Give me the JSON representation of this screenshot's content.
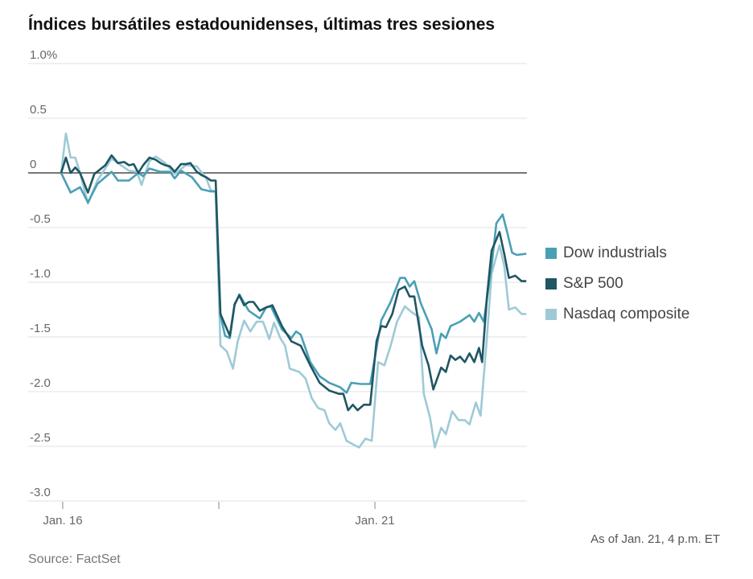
{
  "title": "Índices bursátiles estadounidenses, últimas tres sesiones",
  "as_of": "As of Jan. 21, 4 p.m. ET",
  "source": "Source: FactSet",
  "chart_data": {
    "type": "line",
    "title": "Índices bursátiles estadounidenses, últimas tres sesiones",
    "xlabel": "",
    "ylabel": "",
    "x_units": "trading sessions from Jan. 16 open",
    "xlim": [
      0,
      2.95
    ],
    "ylim": [
      -3.0,
      1.0
    ],
    "yticks": [
      1.0,
      0.5,
      0,
      -0.5,
      -1.0,
      -1.5,
      -2.0,
      -2.5,
      -3.0
    ],
    "ytick_labels": [
      "1.0%",
      "0.5",
      "0",
      "-0.5",
      "-1.0",
      "-1.5",
      "-2.0",
      "-2.5",
      "-3.0"
    ],
    "xticks": [
      0.01,
      1.0,
      1.99
    ],
    "xtick_labels": [
      "Jan. 16",
      "",
      "Jan. 21"
    ],
    "grid": true,
    "legend_position": "right",
    "series": [
      {
        "name": "Dow industrials",
        "color": "#4a9fb5",
        "points": [
          [
            0,
            0
          ],
          [
            0.06,
            -0.18
          ],
          [
            0.12,
            -0.13
          ],
          [
            0.17,
            -0.27
          ],
          [
            0.23,
            -0.1
          ],
          [
            0.32,
            0.01
          ],
          [
            0.36,
            -0.07
          ],
          [
            0.43,
            -0.07
          ],
          [
            0.49,
            0
          ],
          [
            0.52,
            -0.03
          ],
          [
            0.56,
            0.04
          ],
          [
            0.63,
            0.01
          ],
          [
            0.69,
            0.01
          ],
          [
            0.72,
            -0.05
          ],
          [
            0.76,
            0.02
          ],
          [
            0.83,
            -0.04
          ],
          [
            0.89,
            -0.15
          ],
          [
            0.95,
            -0.17
          ],
          [
            0.98,
            -0.17
          ],
          [
            1.01,
            -1.3
          ],
          [
            1.04,
            -1.49
          ],
          [
            1.07,
            -1.51
          ],
          [
            1.1,
            -1.21
          ],
          [
            1.13,
            -1.11
          ],
          [
            1.19,
            -1.26
          ],
          [
            1.26,
            -1.33
          ],
          [
            1.3,
            -1.23
          ],
          [
            1.33,
            -1.22
          ],
          [
            1.4,
            -1.43
          ],
          [
            1.46,
            -1.51
          ],
          [
            1.49,
            -1.45
          ],
          [
            1.52,
            -1.48
          ],
          [
            1.58,
            -1.73
          ],
          [
            1.64,
            -1.86
          ],
          [
            1.7,
            -1.92
          ],
          [
            1.77,
            -1.96
          ],
          [
            1.81,
            -2.01
          ],
          [
            1.84,
            -1.92
          ],
          [
            1.9,
            -1.93
          ],
          [
            1.96,
            -1.93
          ],
          [
            1.99,
            -1.69
          ],
          [
            2.03,
            -1.35
          ],
          [
            2.09,
            -1.18
          ],
          [
            2.15,
            -0.96
          ],
          [
            2.18,
            -0.96
          ],
          [
            2.21,
            -1.04
          ],
          [
            2.24,
            -0.99
          ],
          [
            2.28,
            -1.19
          ],
          [
            2.35,
            -1.43
          ],
          [
            2.38,
            -1.65
          ],
          [
            2.41,
            -1.47
          ],
          [
            2.44,
            -1.51
          ],
          [
            2.47,
            -1.4
          ],
          [
            2.53,
            -1.36
          ],
          [
            2.59,
            -1.3
          ],
          [
            2.62,
            -1.36
          ],
          [
            2.65,
            -1.28
          ],
          [
            2.68,
            -1.36
          ],
          [
            2.73,
            -0.85
          ],
          [
            2.76,
            -0.46
          ],
          [
            2.8,
            -0.38
          ],
          [
            2.83,
            -0.55
          ],
          [
            2.86,
            -0.73
          ],
          [
            2.89,
            -0.75
          ],
          [
            2.95,
            -0.74
          ]
        ]
      },
      {
        "name": "S&P 500",
        "color": "#1f5663",
        "points": [
          [
            0,
            0
          ],
          [
            0.03,
            0.14
          ],
          [
            0.06,
            0
          ],
          [
            0.09,
            0.05
          ],
          [
            0.12,
            0
          ],
          [
            0.17,
            -0.18
          ],
          [
            0.21,
            -0.01
          ],
          [
            0.28,
            0.07
          ],
          [
            0.32,
            0.16
          ],
          [
            0.36,
            0.09
          ],
          [
            0.4,
            0.1
          ],
          [
            0.43,
            0.07
          ],
          [
            0.46,
            0.08
          ],
          [
            0.49,
            0
          ],
          [
            0.52,
            0.07
          ],
          [
            0.56,
            0.14
          ],
          [
            0.6,
            0.12
          ],
          [
            0.63,
            0.09
          ],
          [
            0.66,
            0.07
          ],
          [
            0.69,
            0.06
          ],
          [
            0.72,
            0.01
          ],
          [
            0.76,
            0.08
          ],
          [
            0.79,
            0.08
          ],
          [
            0.82,
            0.09
          ],
          [
            0.86,
            0.01
          ],
          [
            0.89,
            -0.02
          ],
          [
            0.92,
            -0.04
          ],
          [
            0.95,
            -0.07
          ],
          [
            0.98,
            -0.07
          ],
          [
            1.01,
            -1.29
          ],
          [
            1.07,
            -1.49
          ],
          [
            1.1,
            -1.2
          ],
          [
            1.13,
            -1.12
          ],
          [
            1.16,
            -1.21
          ],
          [
            1.19,
            -1.18
          ],
          [
            1.22,
            -1.18
          ],
          [
            1.26,
            -1.26
          ],
          [
            1.3,
            -1.23
          ],
          [
            1.34,
            -1.21
          ],
          [
            1.4,
            -1.4
          ],
          [
            1.46,
            -1.54
          ],
          [
            1.52,
            -1.58
          ],
          [
            1.58,
            -1.76
          ],
          [
            1.64,
            -1.92
          ],
          [
            1.7,
            -1.99
          ],
          [
            1.76,
            -2.02
          ],
          [
            1.79,
            -2.02
          ],
          [
            1.82,
            -2.17
          ],
          [
            1.85,
            -2.12
          ],
          [
            1.88,
            -2.17
          ],
          [
            1.92,
            -2.12
          ],
          [
            1.96,
            -2.12
          ],
          [
            2.0,
            -1.54
          ],
          [
            2.03,
            -1.4
          ],
          [
            2.06,
            -1.41
          ],
          [
            2.1,
            -1.29
          ],
          [
            2.14,
            -1.07
          ],
          [
            2.18,
            -1.04
          ],
          [
            2.21,
            -1.13
          ],
          [
            2.24,
            -1.13
          ],
          [
            2.29,
            -1.58
          ],
          [
            2.33,
            -1.76
          ],
          [
            2.36,
            -1.98
          ],
          [
            2.41,
            -1.78
          ],
          [
            2.44,
            -1.82
          ],
          [
            2.47,
            -1.67
          ],
          [
            2.5,
            -1.71
          ],
          [
            2.53,
            -1.68
          ],
          [
            2.56,
            -1.73
          ],
          [
            2.59,
            -1.65
          ],
          [
            2.62,
            -1.73
          ],
          [
            2.65,
            -1.6
          ],
          [
            2.67,
            -1.73
          ],
          [
            2.7,
            -1.14
          ],
          [
            2.73,
            -0.71
          ],
          [
            2.78,
            -0.54
          ],
          [
            2.81,
            -0.74
          ],
          [
            2.84,
            -0.96
          ],
          [
            2.88,
            -0.94
          ],
          [
            2.92,
            -0.99
          ],
          [
            2.95,
            -0.99
          ]
        ]
      },
      {
        "name": "Nasdaq composite",
        "color": "#9ecad6",
        "points": [
          [
            0,
            0
          ],
          [
            0.03,
            0.36
          ],
          [
            0.06,
            0.14
          ],
          [
            0.09,
            0.14
          ],
          [
            0.12,
            0
          ],
          [
            0.17,
            -0.28
          ],
          [
            0.23,
            -0.07
          ],
          [
            0.32,
            0.13
          ],
          [
            0.38,
            0.07
          ],
          [
            0.43,
            0.02
          ],
          [
            0.48,
            0.01
          ],
          [
            0.51,
            -0.11
          ],
          [
            0.56,
            0.11
          ],
          [
            0.6,
            0.15
          ],
          [
            0.66,
            0.09
          ],
          [
            0.72,
            -0.01
          ],
          [
            0.79,
            0.07
          ],
          [
            0.86,
            0.06
          ],
          [
            0.92,
            -0.05
          ],
          [
            0.95,
            -0.16
          ],
          [
            0.98,
            -0.17
          ],
          [
            1.01,
            -1.58
          ],
          [
            1.05,
            -1.63
          ],
          [
            1.09,
            -1.79
          ],
          [
            1.12,
            -1.54
          ],
          [
            1.16,
            -1.35
          ],
          [
            1.2,
            -1.45
          ],
          [
            1.24,
            -1.36
          ],
          [
            1.28,
            -1.36
          ],
          [
            1.32,
            -1.52
          ],
          [
            1.35,
            -1.37
          ],
          [
            1.39,
            -1.51
          ],
          [
            1.42,
            -1.58
          ],
          [
            1.45,
            -1.79
          ],
          [
            1.51,
            -1.82
          ],
          [
            1.55,
            -1.88
          ],
          [
            1.59,
            -2.06
          ],
          [
            1.63,
            -2.15
          ],
          [
            1.67,
            -2.17
          ],
          [
            1.7,
            -2.29
          ],
          [
            1.74,
            -2.35
          ],
          [
            1.77,
            -2.29
          ],
          [
            1.81,
            -2.45
          ],
          [
            1.86,
            -2.49
          ],
          [
            1.89,
            -2.51
          ],
          [
            1.93,
            -2.43
          ],
          [
            1.97,
            -2.45
          ],
          [
            2.01,
            -1.73
          ],
          [
            2.05,
            -1.76
          ],
          [
            2.09,
            -1.58
          ],
          [
            2.13,
            -1.36
          ],
          [
            2.18,
            -1.22
          ],
          [
            2.22,
            -1.27
          ],
          [
            2.27,
            -1.32
          ],
          [
            2.3,
            -2.02
          ],
          [
            2.34,
            -2.24
          ],
          [
            2.37,
            -2.51
          ],
          [
            2.41,
            -2.33
          ],
          [
            2.44,
            -2.39
          ],
          [
            2.48,
            -2.18
          ],
          [
            2.52,
            -2.26
          ],
          [
            2.56,
            -2.26
          ],
          [
            2.59,
            -2.3
          ],
          [
            2.63,
            -2.1
          ],
          [
            2.66,
            -2.22
          ],
          [
            2.7,
            -1.51
          ],
          [
            2.73,
            -0.92
          ],
          [
            2.78,
            -0.66
          ],
          [
            2.81,
            -0.85
          ],
          [
            2.84,
            -1.25
          ],
          [
            2.88,
            -1.23
          ],
          [
            2.92,
            -1.29
          ],
          [
            2.95,
            -1.29
          ]
        ]
      }
    ]
  }
}
